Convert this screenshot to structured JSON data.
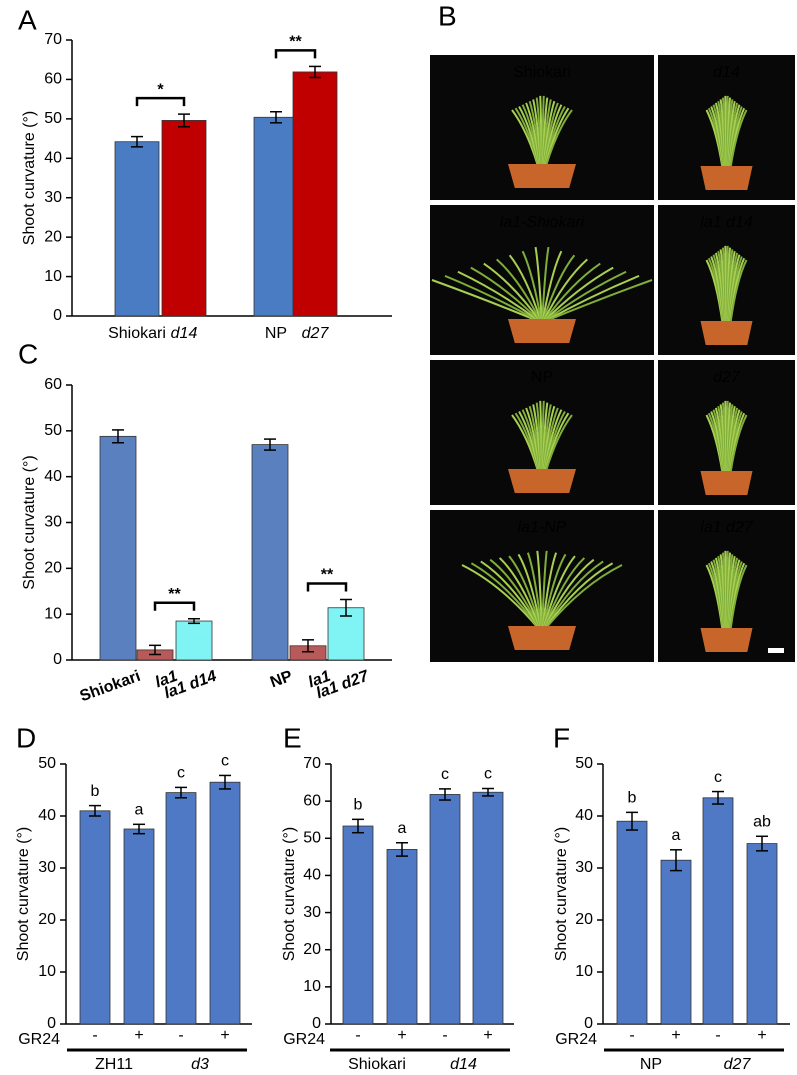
{
  "chart_data": [
    {
      "type": "bar",
      "panel": "A",
      "y_label": "Shoot curvature (°)",
      "categories": [
        "Shiokari",
        "d14",
        "NP",
        "d27"
      ],
      "values": [
        44.2,
        49.6,
        50.4,
        61.9
      ],
      "errors": [
        1.3,
        1.6,
        1.4,
        1.4
      ],
      "colors": [
        "#4a7cc4",
        "#c00000",
        "#4a7cc4",
        "#c00000"
      ],
      "ylim": [
        0,
        70
      ],
      "yticks": [
        0,
        10,
        20,
        30,
        40,
        50,
        60,
        70
      ],
      "annotations": [
        "*",
        "**"
      ]
    },
    {
      "type": "bar",
      "panel": "C",
      "y_label": "Shoot curvature (°)",
      "categories": [
        "Shiokari",
        "la1",
        "la1 d14",
        "NP",
        "la1",
        "la1 d27"
      ],
      "values": [
        48.8,
        2.2,
        8.5,
        47,
        3.1,
        11.4
      ],
      "errors": [
        1.4,
        1.0,
        0.5,
        1.2,
        1.3,
        1.8
      ],
      "colors": [
        "#5b80c0",
        "#b85a5a",
        "#80f4f4",
        "#5b80c0",
        "#b85a5a",
        "#80f4f4"
      ],
      "ylim": [
        0,
        60
      ],
      "yticks": [
        0,
        10,
        20,
        30,
        40,
        50,
        60
      ],
      "annotations": [
        "**",
        "**"
      ]
    },
    {
      "type": "bar",
      "panel": "D",
      "y_label": "Shoot curvature (°)",
      "treatment_label": "GR24",
      "treatments": [
        "-",
        "+",
        "-",
        "+"
      ],
      "groups": [
        "ZH11",
        "d3"
      ],
      "values": [
        41,
        37.5,
        44.5,
        46.5
      ],
      "errors": [
        1.0,
        0.9,
        1.0,
        1.3
      ],
      "letters": [
        "b",
        "a",
        "c",
        "c"
      ],
      "color": "#4f79c4",
      "ylim": [
        0,
        50
      ],
      "yticks": [
        0,
        10,
        20,
        30,
        40,
        50
      ]
    },
    {
      "type": "bar",
      "panel": "E",
      "y_label": "Shoot curvature (°)",
      "treatment_label": "GR24",
      "treatments": [
        "-",
        "+",
        "-",
        "+"
      ],
      "groups": [
        "Shiokari",
        "d14"
      ],
      "values": [
        53.3,
        47,
        61.8,
        62.4
      ],
      "errors": [
        1.8,
        1.8,
        1.5,
        1.0
      ],
      "letters": [
        "b",
        "a",
        "c",
        "c"
      ],
      "color": "#4f79c4",
      "ylim": [
        0,
        70
      ],
      "yticks": [
        0,
        10,
        20,
        30,
        40,
        50,
        60,
        70
      ]
    },
    {
      "type": "bar",
      "panel": "F",
      "y_label": "Shoot curvature (°)",
      "treatment_label": "GR24",
      "treatments": [
        "-",
        "+",
        "-",
        "+"
      ],
      "groups": [
        "NP",
        "d27"
      ],
      "values": [
        39,
        31.5,
        43.5,
        34.7
      ],
      "errors": [
        1.7,
        2.0,
        1.2,
        1.4
      ],
      "letters": [
        "b",
        "a",
        "c",
        "ab"
      ],
      "color": "#4f79c4",
      "ylim": [
        0,
        50
      ],
      "yticks": [
        0,
        10,
        20,
        30,
        40,
        50
      ]
    }
  ],
  "photo_panel": {
    "panel": "B",
    "labels": [
      "Shiokari",
      "d14",
      "la1-Shiokari",
      "la1 d14",
      "NP",
      "d27",
      "la1-NP",
      "la1 d27"
    ]
  }
}
